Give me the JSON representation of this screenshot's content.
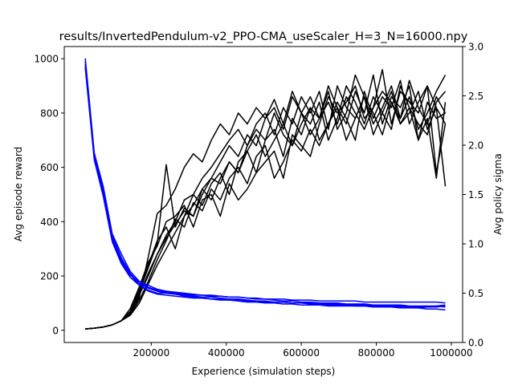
{
  "chart_data": {
    "type": "line",
    "title": "results/InvertedPendulum-v2_PPO-CMA_useScaler_H=3_N=16000.npy",
    "xlabel": "Experience (simulation steps)",
    "ylabel": "Avg episode reward",
    "ylabel_right": "Avg policy sigma",
    "xlim": [
      -32000,
      1030000
    ],
    "ylim": [
      -45,
      1045
    ],
    "ylim_right": [
      0.0,
      3.0
    ],
    "x_ticks": [
      200000,
      400000,
      600000,
      800000,
      1000000
    ],
    "x_tick_labels": [
      "200000",
      "400000",
      "600000",
      "800000",
      "1000000"
    ],
    "y_ticks": [
      0,
      200,
      400,
      600,
      800,
      1000
    ],
    "y_tick_labels": [
      "0",
      "200",
      "400",
      "600",
      "800",
      "1000"
    ],
    "y_ticks_right": [
      0.0,
      0.5,
      1.0,
      1.5,
      2.0,
      2.5,
      3.0
    ],
    "y_tick_labels_right": [
      "0.0",
      "0.5",
      "1.0",
      "1.5",
      "2.0",
      "2.5",
      "3.0"
    ],
    "colors": {
      "reward": "#000000",
      "sigma": "#0000ff",
      "ylabel_right": "#0000ff"
    },
    "x": [
      24000,
      48000,
      72000,
      96000,
      120000,
      144000,
      168000,
      192000,
      216000,
      240000,
      264000,
      288000,
      312000,
      336000,
      360000,
      384000,
      408000,
      432000,
      456000,
      480000,
      504000,
      528000,
      552000,
      576000,
      600000,
      624000,
      648000,
      672000,
      696000,
      720000,
      744000,
      768000,
      792000,
      816000,
      840000,
      864000,
      888000,
      912000,
      936000,
      960000,
      984000
    ],
    "reward_series": [
      {
        "values": [
          5,
          8,
          12,
          20,
          35,
          60,
          120,
          270,
          430,
          460,
          520,
          600,
          650,
          620,
          700,
          760,
          720,
          800,
          760,
          820,
          780,
          850,
          760,
          880,
          800,
          860,
          780,
          900,
          820,
          760,
          880,
          800,
          940,
          760,
          860,
          820,
          900,
          700,
          840,
          780,
          800
        ]
      },
      {
        "values": [
          5,
          8,
          12,
          20,
          35,
          70,
          130,
          200,
          280,
          350,
          400,
          480,
          500,
          560,
          600,
          650,
          700,
          740,
          680,
          760,
          800,
          720,
          820,
          760,
          860,
          800,
          880,
          740,
          900,
          820,
          780,
          860,
          720,
          800,
          880,
          760,
          820,
          760,
          720,
          840,
          880
        ]
      },
      {
        "values": [
          5,
          8,
          12,
          20,
          35,
          65,
          140,
          230,
          320,
          610,
          380,
          450,
          420,
          520,
          560,
          540,
          620,
          580,
          660,
          720,
          640,
          700,
          760,
          680,
          800,
          760,
          840,
          700,
          780,
          900,
          840,
          760,
          860,
          800,
          740,
          900,
          820,
          700,
          780,
          560,
          840
        ]
      },
      {
        "values": [
          5,
          8,
          12,
          20,
          35,
          60,
          110,
          180,
          260,
          330,
          410,
          380,
          470,
          440,
          520,
          480,
          560,
          600,
          540,
          640,
          680,
          560,
          620,
          700,
          660,
          740,
          680,
          760,
          820,
          700,
          780,
          860,
          800,
          720,
          840,
          760,
          800,
          880,
          740,
          820,
          760
        ]
      },
      {
        "values": [
          5,
          8,
          12,
          20,
          35,
          80,
          160,
          250,
          310,
          400,
          420,
          460,
          380,
          480,
          500,
          420,
          540,
          480,
          520,
          580,
          620,
          660,
          560,
          720,
          680,
          640,
          760,
          860,
          800,
          840,
          900,
          780,
          820,
          960,
          760,
          880,
          840,
          800,
          900,
          820,
          530
        ]
      },
      {
        "values": [
          5,
          8,
          12,
          20,
          35,
          70,
          150,
          240,
          330,
          380,
          300,
          420,
          500,
          460,
          540,
          580,
          500,
          620,
          660,
          580,
          700,
          740,
          640,
          780,
          720,
          820,
          780,
          880,
          740,
          800,
          940,
          860,
          760,
          820,
          900,
          780,
          860,
          740,
          800,
          880,
          940
        ]
      },
      {
        "values": [
          5,
          8,
          12,
          20,
          35,
          55,
          100,
          170,
          240,
          300,
          360,
          420,
          460,
          520,
          480,
          560,
          620,
          580,
          680,
          740,
          700,
          800,
          720,
          680,
          760,
          820,
          700,
          760,
          840,
          780,
          700,
          880,
          780,
          860,
          820,
          920,
          760,
          840,
          900,
          580,
          760
        ]
      },
      {
        "values": [
          5,
          8,
          12,
          20,
          35,
          60,
          130,
          210,
          280,
          340,
          390,
          440,
          420,
          500,
          560,
          620,
          680,
          640,
          720,
          680,
          780,
          820,
          740,
          860,
          800,
          720,
          780,
          840,
          760,
          860,
          800,
          740,
          820,
          880,
          840,
          780,
          920,
          820,
          760,
          860,
          800
        ]
      }
    ],
    "sigma_series": [
      {
        "values": [
          2.88,
          1.92,
          1.58,
          1.1,
          0.9,
          0.72,
          0.62,
          0.58,
          0.54,
          0.52,
          0.51,
          0.5,
          0.49,
          0.48,
          0.48,
          0.47,
          0.46,
          0.46,
          0.45,
          0.44,
          0.44,
          0.43,
          0.42,
          0.42,
          0.41,
          0.41,
          0.4,
          0.4,
          0.4,
          0.39,
          0.39,
          0.39,
          0.38,
          0.38,
          0.38,
          0.38,
          0.37,
          0.37,
          0.37,
          0.37,
          0.36
        ]
      },
      {
        "values": [
          2.85,
          1.9,
          1.55,
          1.08,
          0.86,
          0.7,
          0.6,
          0.55,
          0.52,
          0.5,
          0.49,
          0.48,
          0.47,
          0.46,
          0.46,
          0.45,
          0.44,
          0.44,
          0.43,
          0.42,
          0.42,
          0.41,
          0.41,
          0.4,
          0.4,
          0.39,
          0.39,
          0.38,
          0.38,
          0.38,
          0.37,
          0.37,
          0.37,
          0.36,
          0.36,
          0.35,
          0.35,
          0.35,
          0.34,
          0.34,
          0.33
        ]
      },
      {
        "values": [
          2.82,
          1.88,
          1.52,
          1.05,
          0.84,
          0.69,
          0.58,
          0.53,
          0.5,
          0.5,
          0.49,
          0.47,
          0.46,
          0.45,
          0.44,
          0.43,
          0.43,
          0.42,
          0.41,
          0.41,
          0.4,
          0.4,
          0.39,
          0.39,
          0.38,
          0.38,
          0.38,
          0.37,
          0.37,
          0.37,
          0.37,
          0.37,
          0.36,
          0.36,
          0.36,
          0.36,
          0.36,
          0.35,
          0.36,
          0.36,
          0.37
        ]
      },
      {
        "values": [
          2.8,
          1.86,
          1.5,
          1.04,
          0.82,
          0.68,
          0.62,
          0.56,
          0.53,
          0.51,
          0.5,
          0.49,
          0.48,
          0.48,
          0.47,
          0.47,
          0.46,
          0.46,
          0.45,
          0.45,
          0.44,
          0.44,
          0.44,
          0.43,
          0.43,
          0.43,
          0.42,
          0.42,
          0.42,
          0.42,
          0.42,
          0.41,
          0.41,
          0.41,
          0.41,
          0.41,
          0.41,
          0.41,
          0.41,
          0.41,
          0.4
        ]
      },
      {
        "values": [
          2.78,
          1.85,
          1.48,
          1.02,
          0.8,
          0.66,
          0.58,
          0.52,
          0.49,
          0.48,
          0.47,
          0.46,
          0.45,
          0.45,
          0.44,
          0.44,
          0.43,
          0.43,
          0.42,
          0.42,
          0.41,
          0.41,
          0.41,
          0.4,
          0.4,
          0.4,
          0.39,
          0.39,
          0.39,
          0.38,
          0.38,
          0.38,
          0.38,
          0.37,
          0.37,
          0.37,
          0.36,
          0.36,
          0.36,
          0.37,
          0.38
        ]
      }
    ]
  }
}
